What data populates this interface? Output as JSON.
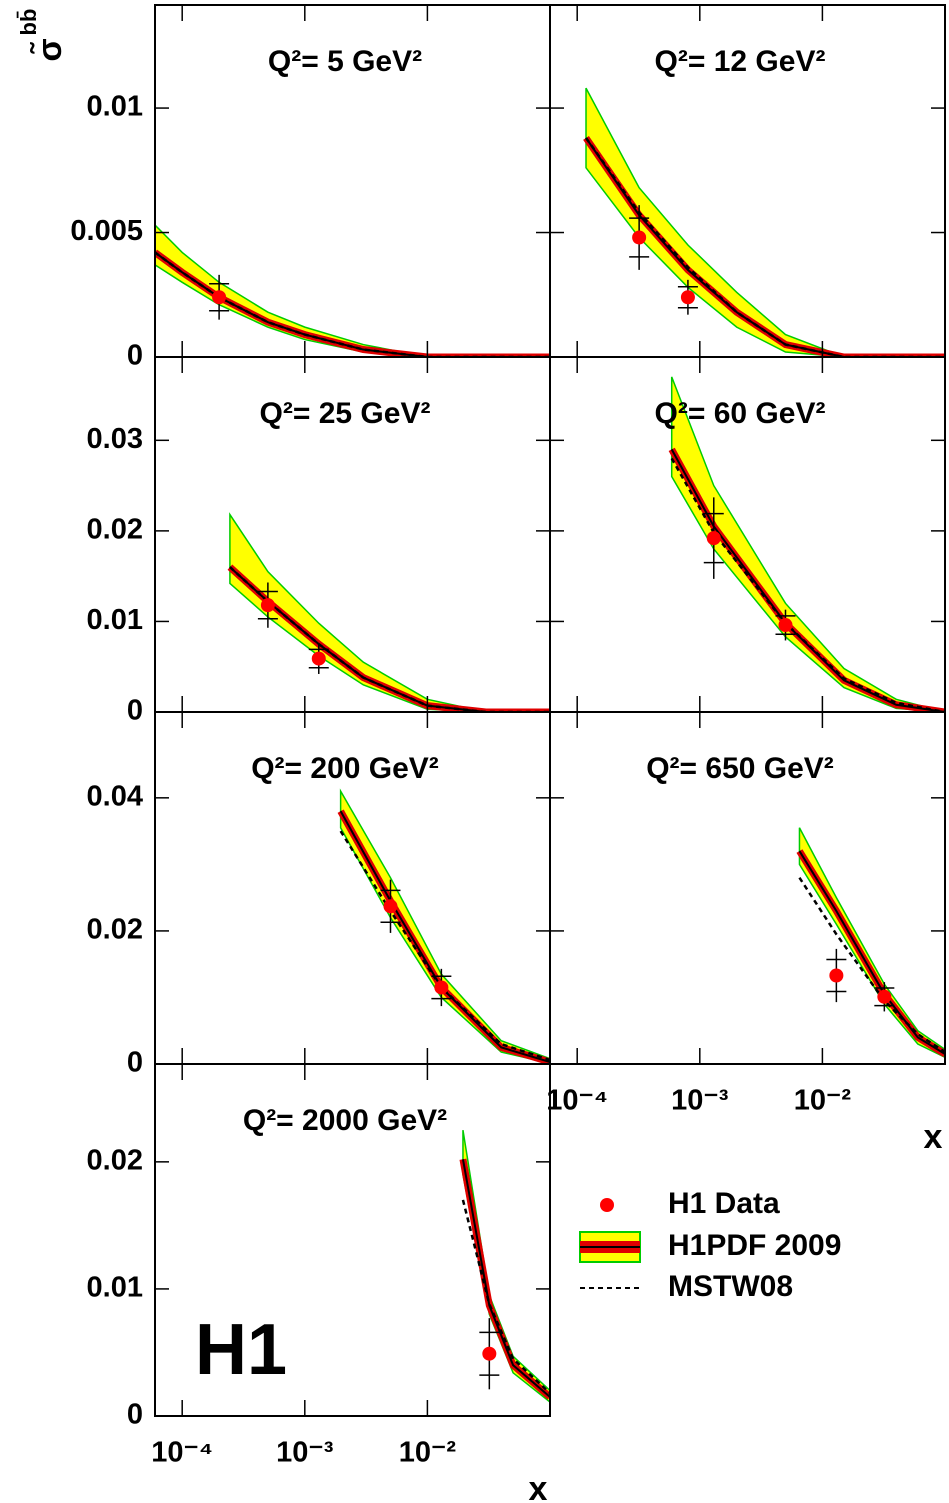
{
  "y_label": "σ̃",
  "y_label_sup": "bb̄",
  "logo": "H1",
  "legend": [
    {
      "name": "H1 Data",
      "color": "#ff0000"
    },
    {
      "name": "H1PDF 2009",
      "color": "#ffff00"
    },
    {
      "name": "MSTW08",
      "color": "#000000"
    }
  ],
  "chart_data": [
    {
      "type": "scatter",
      "title": "Q²= 5 GeV²",
      "log_x": true,
      "xlim": [
        6e-05,
        0.1
      ],
      "xticks": [
        {
          "value": 0.0001,
          "label": "10⁻⁴"
        },
        {
          "value": 0.001,
          "label": "10⁻³"
        },
        {
          "value": 0.01,
          "label": "10⁻²"
        }
      ],
      "ylim": [
        0,
        0.01414
      ],
      "yticks": [
        0,
        0.005,
        0.01
      ],
      "x": [
        0.0002
      ],
      "values": [
        0.0024
      ],
      "errors": [
        0.0009
      ],
      "fit_x": [
        6e-05,
        0.0001,
        0.0002,
        0.0005,
        0.001,
        0.003,
        0.01,
        0.1
      ],
      "fit": [
        0.0042,
        0.0034,
        0.0024,
        0.0014,
        0.0009,
        0.0003,
        0,
        0
      ],
      "fit_lower": [
        0.0037,
        0.003,
        0.0021,
        0.0012,
        0.0007,
        0.0002,
        0,
        0
      ],
      "fit_upper": [
        0.0053,
        0.0042,
        0.003,
        0.0018,
        0.0012,
        0.0005,
        0,
        0
      ],
      "mstw": [
        0.0042,
        0.0034,
        0.0024,
        0.0014,
        0.0009,
        0.0003,
        0,
        0
      ]
    },
    {
      "type": "scatter",
      "title": "Q²= 12 GeV²",
      "log_x": true,
      "xlim": [
        6e-05,
        0.1
      ],
      "xticks": [
        {
          "value": 0.0001,
          "label": "10⁻⁴"
        },
        {
          "value": 0.001,
          "label": "10⁻³"
        },
        {
          "value": 0.01,
          "label": "10⁻²"
        }
      ],
      "ylim": [
        0,
        0.01414
      ],
      "yticks": [
        0,
        0.005,
        0.01
      ],
      "x": [
        0.00032,
        0.0008
      ],
      "values": [
        0.0048,
        0.0024
      ],
      "errors": [
        0.0013,
        0.0007
      ],
      "fit_x": [
        0.000118,
        0.00032,
        0.0008,
        0.002,
        0.005,
        0.015,
        0.1
      ],
      "fit": [
        0.0088,
        0.0057,
        0.0035,
        0.0018,
        0.0005,
        0,
        0
      ],
      "fit_lower": [
        0.0076,
        0.0048,
        0.0028,
        0.0012,
        0.0002,
        0,
        0
      ],
      "fit_upper": [
        0.0108,
        0.0068,
        0.0045,
        0.0026,
        0.0009,
        0,
        0
      ],
      "mstw": [
        0.0088,
        0.0058,
        0.0036,
        0.0018,
        0.0005,
        0,
        0
      ]
    },
    {
      "type": "scatter",
      "title": "Q²= 25 GeV²",
      "log_x": true,
      "xlim": [
        6e-05,
        0.1
      ],
      "xticks": [
        {
          "value": 0.0001,
          "label": "10⁻⁴"
        },
        {
          "value": 0.001,
          "label": "10⁻³"
        },
        {
          "value": 0.01,
          "label": "10⁻²"
        }
      ],
      "ylim": [
        0,
        0.0392
      ],
      "yticks": [
        0,
        0.01,
        0.02,
        0.03
      ],
      "x": [
        0.0005,
        0.0013
      ],
      "values": [
        0.0118,
        0.0059
      ],
      "errors": [
        0.0025,
        0.0017
      ],
      "fit_x": [
        0.000245,
        0.0005,
        0.0013,
        0.003,
        0.01,
        0.03,
        0.1
      ],
      "fit": [
        0.016,
        0.0122,
        0.0075,
        0.0038,
        0.0007,
        0,
        0
      ],
      "fit_lower": [
        0.0142,
        0.0105,
        0.0062,
        0.003,
        0.0003,
        0,
        0
      ],
      "fit_upper": [
        0.0218,
        0.0155,
        0.0098,
        0.0055,
        0.0014,
        0,
        0
      ],
      "mstw": [
        0.016,
        0.0122,
        0.0075,
        0.0038,
        0.0007,
        0,
        0
      ]
    },
    {
      "type": "scatter",
      "title": "Q²= 60 GeV²",
      "log_x": true,
      "xlim": [
        6e-05,
        0.1
      ],
      "xticks": [
        {
          "value": 0.0001,
          "label": "10⁻⁴"
        },
        {
          "value": 0.001,
          "label": "10⁻³"
        },
        {
          "value": 0.01,
          "label": "10⁻²"
        }
      ],
      "ylim": [
        0,
        0.0392
      ],
      "yticks": [
        0,
        0.01,
        0.02,
        0.03
      ],
      "x": [
        0.0013,
        0.005
      ],
      "values": [
        0.0192,
        0.0096
      ],
      "errors": [
        0.0045,
        0.0017
      ],
      "fit_x": [
        0.00059,
        0.0013,
        0.005,
        0.015,
        0.04,
        0.1
      ],
      "fit": [
        0.029,
        0.0205,
        0.0098,
        0.0035,
        0.0008,
        0
      ],
      "fit_lower": [
        0.026,
        0.018,
        0.0083,
        0.0027,
        0.0004,
        0
      ],
      "fit_upper": [
        0.037,
        0.025,
        0.012,
        0.0048,
        0.0014,
        0
      ],
      "mstw": [
        0.028,
        0.0198,
        0.0098,
        0.0037,
        0.001,
        0
      ]
    },
    {
      "type": "scatter",
      "title": "Q²= 200 GeV²",
      "log_x": true,
      "xlim": [
        6e-05,
        0.1
      ],
      "xticks": [
        {
          "value": 0.0001,
          "label": "10⁻⁴"
        },
        {
          "value": 0.001,
          "label": "10⁻³"
        },
        {
          "value": 0.01,
          "label": "10⁻²"
        }
      ],
      "ylim": [
        0,
        0.0529
      ],
      "yticks": [
        0,
        0.02,
        0.04
      ],
      "x": [
        0.005,
        0.013
      ],
      "values": [
        0.0237,
        0.0115
      ],
      "errors": [
        0.004,
        0.0028
      ],
      "fit_x": [
        0.00196,
        0.005,
        0.013,
        0.04,
        0.1
      ],
      "fit": [
        0.038,
        0.0245,
        0.0115,
        0.0025,
        0.0003
      ],
      "fit_lower": [
        0.0355,
        0.022,
        0.01,
        0.0018,
        0.0001
      ],
      "fit_upper": [
        0.041,
        0.028,
        0.0135,
        0.0035,
        0.0008
      ],
      "mstw": [
        0.035,
        0.023,
        0.0115,
        0.003,
        0.0006
      ]
    },
    {
      "type": "scatter",
      "title": "Q²= 650 GeV²",
      "log_x": true,
      "xlim": [
        6e-05,
        0.1
      ],
      "xlabel": "x",
      "xticks": [
        {
          "value": 0.0001,
          "label": "10⁻⁴"
        },
        {
          "value": 0.001,
          "label": "10⁻³"
        },
        {
          "value": 0.01,
          "label": "10⁻²"
        }
      ],
      "ylim": [
        0,
        0.0529
      ],
      "yticks": [
        0,
        0.02,
        0.04
      ],
      "x": [
        0.013,
        0.032
      ],
      "values": [
        0.0133,
        0.0101
      ],
      "errors": [
        0.004,
        0.0022
      ],
      "fit_x": [
        0.0065,
        0.013,
        0.032,
        0.06,
        0.1
      ],
      "fit": [
        0.032,
        0.023,
        0.0105,
        0.004,
        0.0015
      ],
      "fit_lower": [
        0.03,
        0.021,
        0.009,
        0.003,
        0.001
      ],
      "fit_upper": [
        0.0355,
        0.025,
        0.012,
        0.005,
        0.0022
      ],
      "mstw": [
        0.028,
        0.0195,
        0.0095,
        0.0045,
        0.0018
      ]
    },
    {
      "type": "scatter",
      "title": "Q²= 2000 GeV²",
      "log_x": true,
      "xlim": [
        6e-05,
        0.1
      ],
      "xlabel": "x",
      "xticks": [
        {
          "value": 0.0001,
          "label": "10⁻⁴"
        },
        {
          "value": 0.001,
          "label": "10⁻³"
        },
        {
          "value": 0.01,
          "label": "10⁻²"
        }
      ],
      "ylim": [
        0,
        0.0277
      ],
      "yticks": [
        0,
        0.01,
        0.02
      ],
      "x": [
        0.032
      ],
      "values": [
        0.0049
      ],
      "errors": [
        0.0028
      ],
      "fit_x": [
        0.0195,
        0.032,
        0.05,
        0.1
      ],
      "fit": [
        0.0202,
        0.0087,
        0.004,
        0.0015
      ],
      "fit_lower": [
        0.019,
        0.008,
        0.0034,
        0.0011
      ],
      "fit_upper": [
        0.0225,
        0.0095,
        0.0047,
        0.002
      ],
      "mstw": [
        0.017,
        0.0088,
        0.0045,
        0.0018
      ]
    }
  ]
}
